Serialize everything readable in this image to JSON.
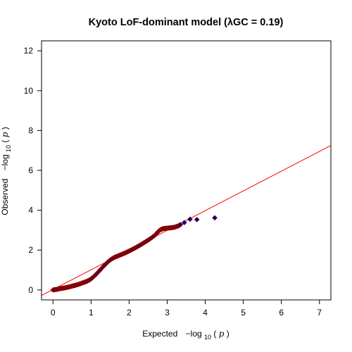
{
  "chart_data": {
    "type": "scatter",
    "title": "Kyoto LoF-dominant model (λGC = 0.19)",
    "xlabel": {
      "prefix": "Expected",
      "minus": "−log",
      "sub": "10",
      "var": "p"
    },
    "ylabel": {
      "prefix": "Observed",
      "minus": "−log",
      "sub": "10",
      "var": "p"
    },
    "xlim": [
      -0.3,
      7.3
    ],
    "ylim": [
      -0.5,
      12.5
    ],
    "xticks": [
      0,
      1,
      2,
      3,
      4,
      5,
      6,
      7
    ],
    "yticks": [
      0,
      2,
      4,
      6,
      8,
      10,
      12
    ],
    "grid": false,
    "reference_line": {
      "slope": 0.99,
      "intercept": 0.02,
      "color": "#ff0000"
    },
    "points_style": {
      "shape": "diamond",
      "fill": "#00008b",
      "edge": "#8b0000"
    },
    "curve": [
      [
        0.0,
        0.0
      ],
      [
        0.1,
        0.03
      ],
      [
        0.2,
        0.07
      ],
      [
        0.3,
        0.1
      ],
      [
        0.4,
        0.14
      ],
      [
        0.5,
        0.19
      ],
      [
        0.6,
        0.24
      ],
      [
        0.7,
        0.3
      ],
      [
        0.8,
        0.37
      ],
      [
        0.9,
        0.44
      ],
      [
        1.0,
        0.55
      ],
      [
        1.1,
        0.72
      ],
      [
        1.2,
        0.92
      ],
      [
        1.3,
        1.13
      ],
      [
        1.4,
        1.33
      ],
      [
        1.5,
        1.5
      ],
      [
        1.6,
        1.62
      ],
      [
        1.7,
        1.7
      ],
      [
        1.8,
        1.78
      ],
      [
        1.9,
        1.86
      ],
      [
        2.0,
        1.95
      ],
      [
        2.1,
        2.05
      ],
      [
        2.2,
        2.15
      ],
      [
        2.3,
        2.26
      ],
      [
        2.4,
        2.38
      ],
      [
        2.5,
        2.5
      ],
      [
        2.6,
        2.63
      ],
      [
        2.7,
        2.78
      ],
      [
        2.75,
        2.9
      ],
      [
        2.82,
        3.02
      ],
      [
        2.9,
        3.08
      ],
      [
        3.0,
        3.1
      ],
      [
        3.1,
        3.12
      ],
      [
        3.2,
        3.15
      ],
      [
        3.3,
        3.22
      ],
      [
        3.35,
        3.28
      ]
    ],
    "tail_points": [
      [
        3.45,
        3.38
      ],
      [
        3.6,
        3.55
      ],
      [
        3.78,
        3.53
      ],
      [
        4.25,
        3.62
      ]
    ]
  }
}
